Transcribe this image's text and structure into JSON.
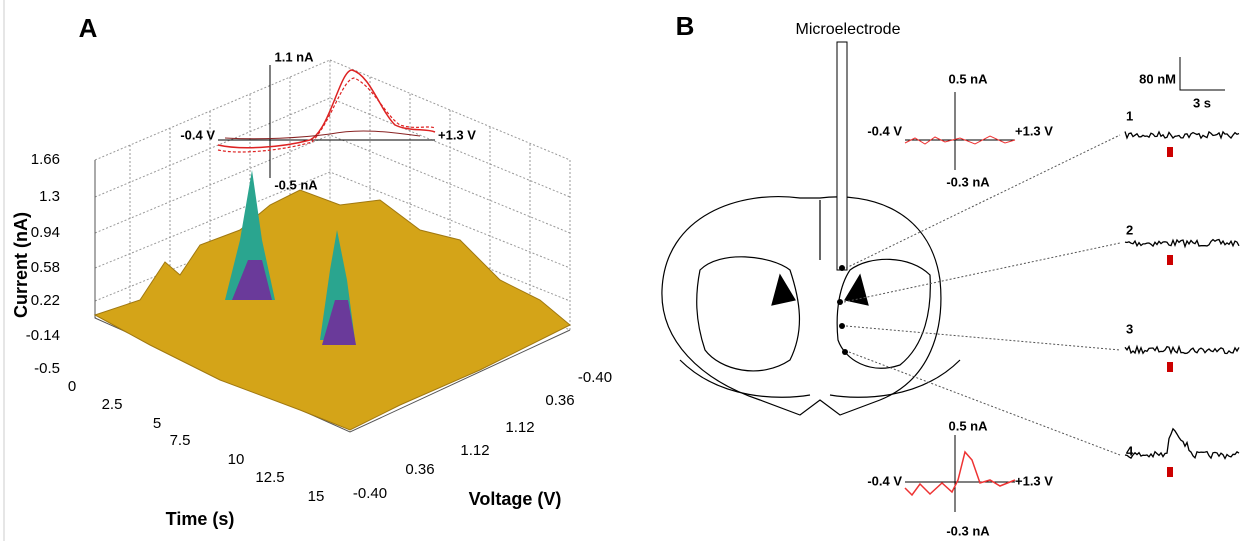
{
  "panel_a": {
    "label": "A",
    "z_axis": {
      "title": "Current (nA)",
      "ticks": [
        "1.66",
        "1.3",
        "0.94",
        "0.58",
        "0.22",
        "-0.14",
        "-0.5"
      ]
    },
    "time_axis": {
      "title": "Time (s)",
      "ticks": [
        "0",
        "2.5",
        "5",
        "7.5",
        "10",
        "12.5",
        "15"
      ]
    },
    "voltage_axis": {
      "title": "Voltage (V)",
      "ticks": [
        "-0.40",
        "0.36",
        "1.12",
        "1.12",
        "0.36",
        "-0.40"
      ]
    },
    "inset": {
      "top": "1.1 nA",
      "left": "-0.4 V",
      "right": "+1.3 V",
      "bottom": "-0.5 nA"
    }
  },
  "panel_b": {
    "label": "B",
    "electrode": "Microelectrode",
    "inset_top": {
      "top": "0.5 nA",
      "left": "-0.4 V",
      "right": "+1.3 V",
      "bottom": "-0.3 nA"
    },
    "inset_bottom": {
      "top": "0.5 nA",
      "left": "-0.4 V",
      "right": "+1.3 V",
      "bottom": "-0.3 nA"
    },
    "scale": {
      "amplitude": "80 nM",
      "time": "3 s"
    },
    "traces": [
      "1",
      "2",
      "3",
      "4"
    ]
  }
}
